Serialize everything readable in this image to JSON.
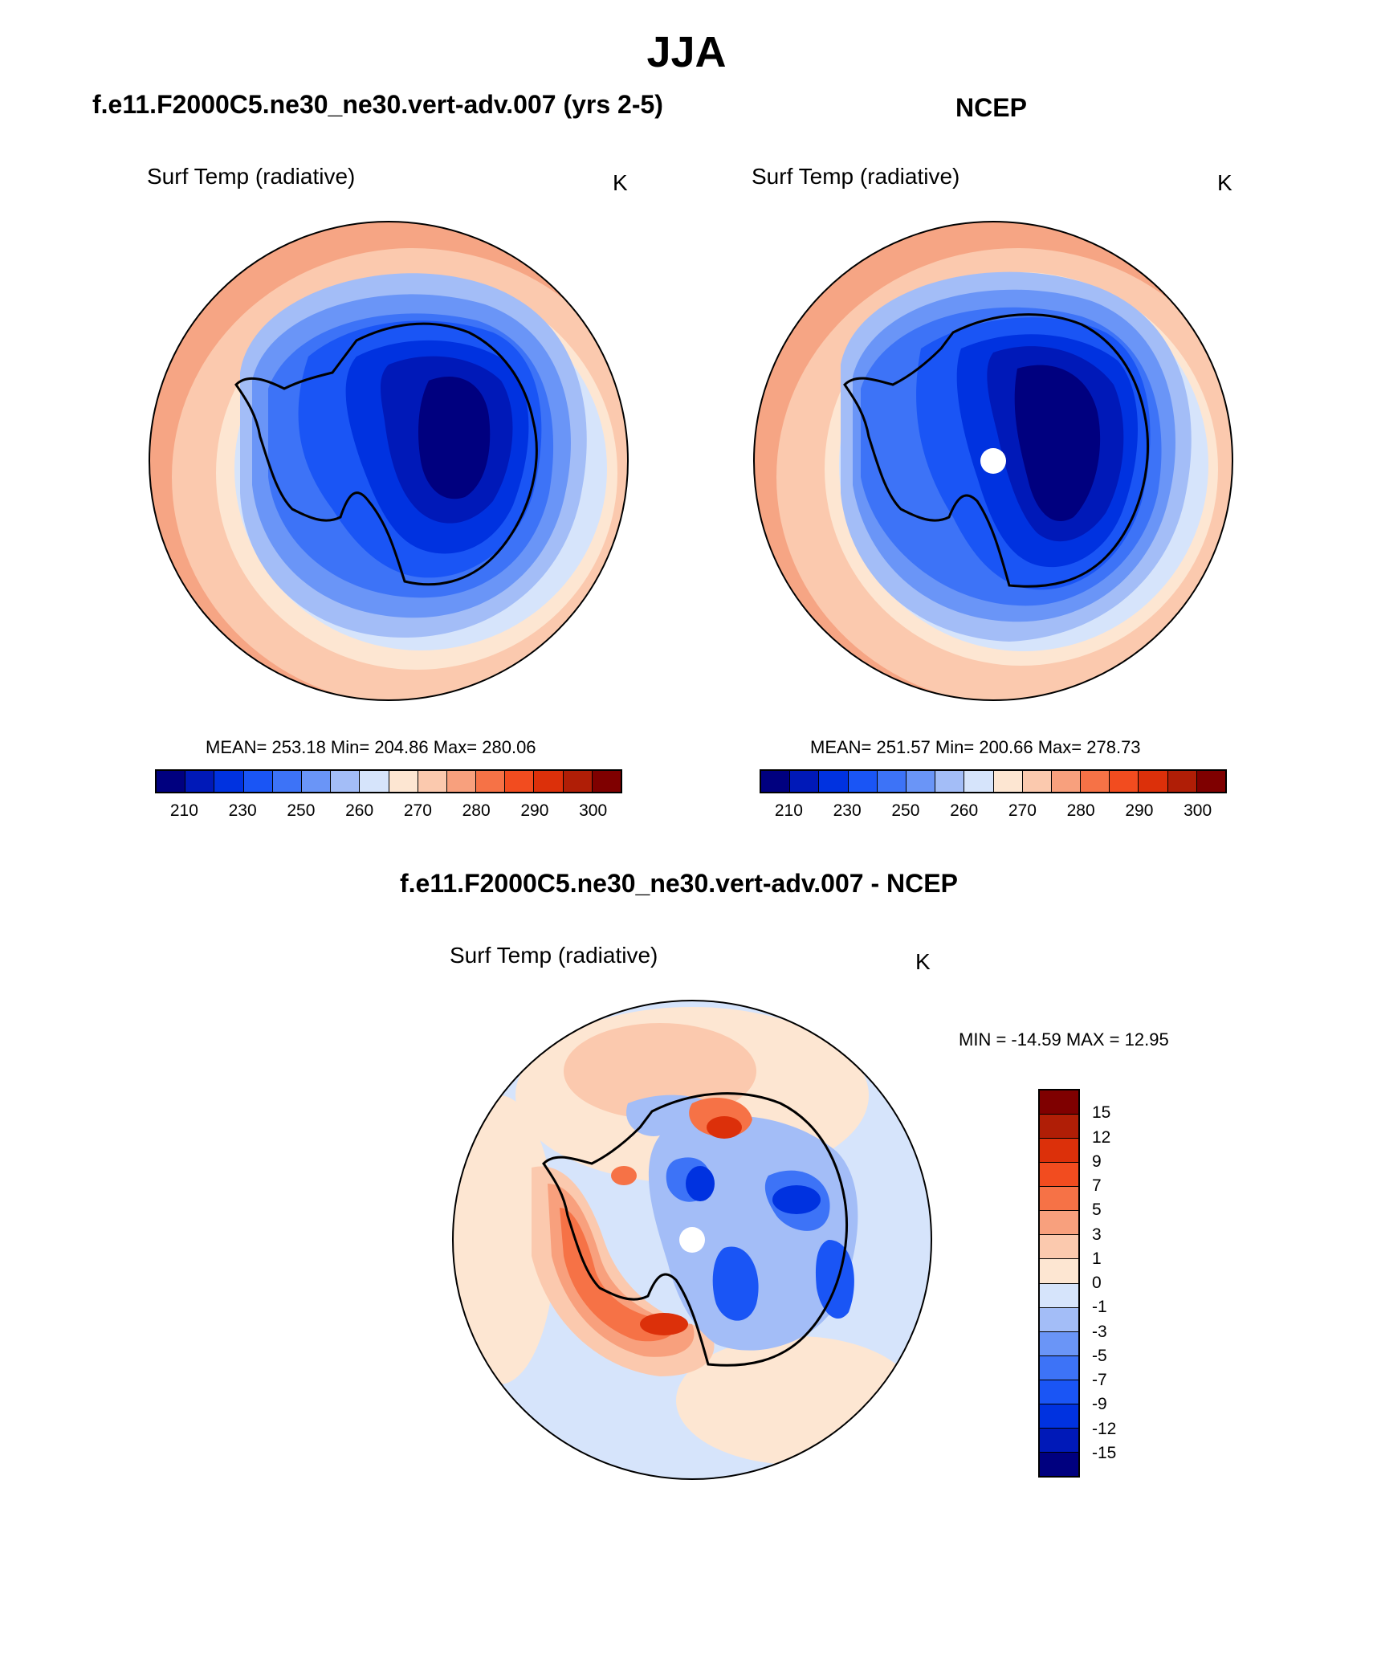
{
  "title": "JJA",
  "panels": {
    "model": {
      "title": "f.e11.F2000C5.ne30_ne30.vert-adv.007 (yrs 2-5)",
      "subtitle": "Surf Temp (radiative)",
      "unit": "K",
      "stats": "MEAN= 253.18  Min= 204.86  Max= 280.06"
    },
    "obs": {
      "title": "NCEP",
      "subtitle": "Surf Temp (radiative)",
      "unit": "K",
      "stats": "MEAN= 251.57  Min= 200.66  Max= 278.73"
    },
    "diff": {
      "title": "f.e11.F2000C5.ne30_ne30.vert-adv.007 - NCEP",
      "subtitle": "Surf Temp (radiative)",
      "unit": "K",
      "stats": "MIN = -14.59 MAX =  12.95"
    }
  },
  "colorbar_abs": {
    "colors": [
      "#00007f",
      "#0019b8",
      "#0032e0",
      "#1a55f5",
      "#3d73f7",
      "#6a95f7",
      "#a3bdf7",
      "#d6e4fb",
      "#fde6d2",
      "#fbc9ae",
      "#f8a07d",
      "#f67246",
      "#f24c1f",
      "#dc300a",
      "#b01e06",
      "#7f0000"
    ],
    "labels": [
      "210",
      "230",
      "250",
      "260",
      "270",
      "280",
      "290",
      "300"
    ]
  },
  "colorbar_diff": {
    "colors": [
      "#7f0000",
      "#b01e06",
      "#dc300a",
      "#f24c1f",
      "#f67246",
      "#f8a07d",
      "#fbc9ae",
      "#fde6d2",
      "#d6e4fb",
      "#a3bdf7",
      "#6a95f7",
      "#3d73f7",
      "#1a55f5",
      "#0032e0",
      "#0019b8",
      "#00007f"
    ],
    "labels": [
      "15",
      "12",
      "9",
      "7",
      "5",
      "3",
      "1",
      "0",
      "-1",
      "-3",
      "-5",
      "-7",
      "-9",
      "-12",
      "-15"
    ]
  },
  "map_fields": {
    "model": {
      "outer": "#f6a584",
      "ring": [
        "#fbc9ae",
        "#fde6d2",
        "#d6e4fb",
        "#a3bdf7",
        "#6a95f7",
        "#3d73f7",
        "#1a55f5",
        "#0032e0",
        "#0019b8",
        "#00007f"
      ],
      "pole_hole": false
    },
    "obs": {
      "outer": "#f6a584",
      "ring": [
        "#fbc9ae",
        "#fde6d2",
        "#d6e4fb",
        "#a3bdf7",
        "#6a95f7",
        "#3d73f7",
        "#1a55f5",
        "#0032e0",
        "#0019b8",
        "#00007f"
      ],
      "pole_hole": true
    },
    "diff": {
      "base": "#d6e4fb",
      "pole_hole": true
    }
  }
}
